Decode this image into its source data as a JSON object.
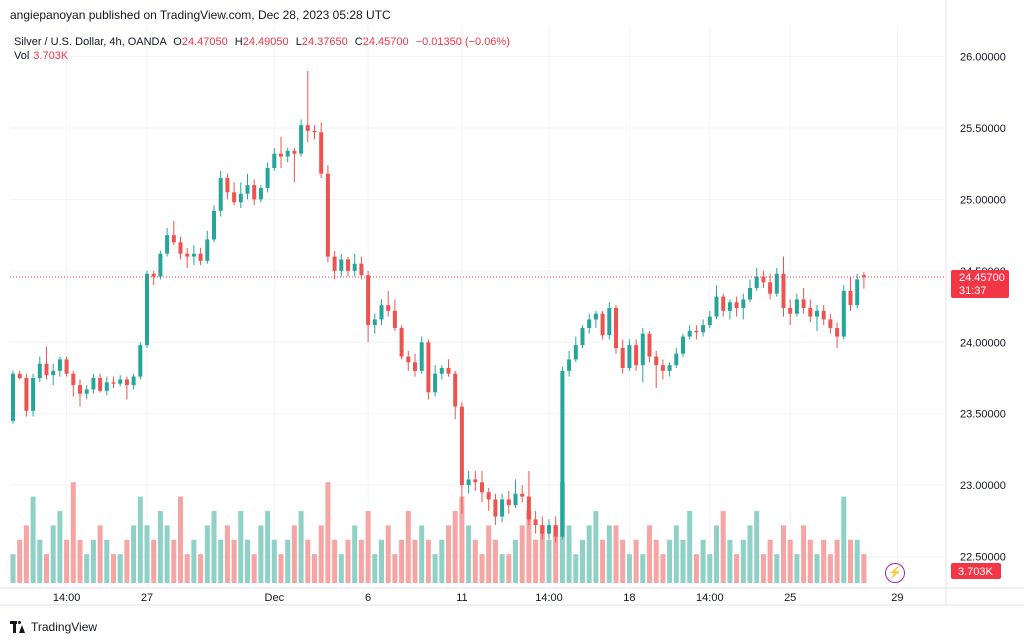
{
  "header": {
    "publisher_text": "angiepanoyan published on TradingView.com, Dec 28, 2023 05:28 UTC"
  },
  "legend": {
    "symbol": "Silver / U.S. Dollar, 4h, OANDA",
    "o_label": "O",
    "o_value": "24.47050",
    "h_label": "H",
    "h_value": "24.49050",
    "l_label": "L",
    "l_value": "24.37650",
    "c_label": "C",
    "c_value": "24.45700",
    "change": "−0.01350 (−0.06%)",
    "vol_label": "Vol",
    "vol_value": "3.703K"
  },
  "price_badge": {
    "price": "24.45700",
    "countdown": "31:37"
  },
  "volume_badge": "3.703K",
  "footer": {
    "brand": "TradingView"
  },
  "colors": {
    "up": "#26a69a",
    "down": "#ef5350",
    "vol_up": "#8fd1c6",
    "vol_down": "#f5a5a3",
    "last_line": "#f23645"
  },
  "chart_data": {
    "type": "candlestick",
    "title": "Silver / U.S. Dollar, 4h, OANDA",
    "ylim": [
      22.35,
      26.2
    ],
    "y_ticks": [
      "26.00000",
      "25.50000",
      "25.00000",
      "24.50000",
      "24.00000",
      "23.50000",
      "23.00000",
      "22.50000"
    ],
    "x_ticks": [
      {
        "label": "14:00",
        "i": 8
      },
      {
        "label": "27",
        "i": 20
      },
      {
        "label": "Dec",
        "i": 39
      },
      {
        "label": "6",
        "i": 53
      },
      {
        "label": "11",
        "i": 67
      },
      {
        "label": "14:00",
        "i": 80
      },
      {
        "label": "18",
        "i": 92
      },
      {
        "label": "14:00",
        "i": 104
      },
      {
        "label": "25",
        "i": 116
      },
      {
        "label": "29",
        "i": 132
      }
    ],
    "last_price": 24.457,
    "candles": [
      {
        "o": 23.45,
        "h": 23.8,
        "l": 23.43,
        "c": 23.78,
        "v": 2
      },
      {
        "o": 23.78,
        "h": 23.8,
        "l": 23.74,
        "c": 23.75,
        "v": 3
      },
      {
        "o": 23.75,
        "h": 23.78,
        "l": 23.48,
        "c": 23.52,
        "v": 4
      },
      {
        "o": 23.52,
        "h": 23.78,
        "l": 23.48,
        "c": 23.75,
        "v": 6
      },
      {
        "o": 23.75,
        "h": 23.9,
        "l": 23.72,
        "c": 23.85,
        "v": 3
      },
      {
        "o": 23.85,
        "h": 23.97,
        "l": 23.74,
        "c": 23.77,
        "v": 2
      },
      {
        "o": 23.77,
        "h": 23.85,
        "l": 23.7,
        "c": 23.8,
        "v": 4
      },
      {
        "o": 23.8,
        "h": 23.9,
        "l": 23.76,
        "c": 23.88,
        "v": 5
      },
      {
        "o": 23.88,
        "h": 23.9,
        "l": 23.76,
        "c": 23.78,
        "v": 3
      },
      {
        "o": 23.78,
        "h": 23.8,
        "l": 23.62,
        "c": 23.7,
        "v": 7
      },
      {
        "o": 23.7,
        "h": 23.74,
        "l": 23.55,
        "c": 23.64,
        "v": 3
      },
      {
        "o": 23.64,
        "h": 23.7,
        "l": 23.6,
        "c": 23.67,
        "v": 2
      },
      {
        "o": 23.67,
        "h": 23.78,
        "l": 23.64,
        "c": 23.75,
        "v": 3
      },
      {
        "o": 23.75,
        "h": 23.78,
        "l": 23.65,
        "c": 23.66,
        "v": 4
      },
      {
        "o": 23.66,
        "h": 23.76,
        "l": 23.63,
        "c": 23.72,
        "v": 3
      },
      {
        "o": 23.72,
        "h": 23.76,
        "l": 23.68,
        "c": 23.71,
        "v": 2
      },
      {
        "o": 23.71,
        "h": 23.77,
        "l": 23.69,
        "c": 23.74,
        "v": 2
      },
      {
        "o": 23.74,
        "h": 23.76,
        "l": 23.6,
        "c": 23.7,
        "v": 3
      },
      {
        "o": 23.7,
        "h": 23.78,
        "l": 23.67,
        "c": 23.76,
        "v": 4
      },
      {
        "o": 23.76,
        "h": 24.0,
        "l": 23.74,
        "c": 23.98,
        "v": 6
      },
      {
        "o": 23.98,
        "h": 24.5,
        "l": 23.96,
        "c": 24.48,
        "v": 4
      },
      {
        "o": 24.48,
        "h": 24.5,
        "l": 24.4,
        "c": 24.46,
        "v": 3
      },
      {
        "o": 24.46,
        "h": 24.64,
        "l": 24.44,
        "c": 24.62,
        "v": 5
      },
      {
        "o": 24.62,
        "h": 24.8,
        "l": 24.6,
        "c": 24.75,
        "v": 4
      },
      {
        "o": 24.75,
        "h": 24.85,
        "l": 24.68,
        "c": 24.7,
        "v": 3
      },
      {
        "o": 24.7,
        "h": 24.74,
        "l": 24.58,
        "c": 24.62,
        "v": 6
      },
      {
        "o": 24.62,
        "h": 24.66,
        "l": 24.52,
        "c": 24.6,
        "v": 2
      },
      {
        "o": 24.6,
        "h": 24.68,
        "l": 24.54,
        "c": 24.62,
        "v": 3
      },
      {
        "o": 24.62,
        "h": 24.66,
        "l": 24.54,
        "c": 24.57,
        "v": 2
      },
      {
        "o": 24.57,
        "h": 24.78,
        "l": 24.55,
        "c": 24.72,
        "v": 4
      },
      {
        "o": 24.72,
        "h": 24.96,
        "l": 24.7,
        "c": 24.92,
        "v": 5
      },
      {
        "o": 24.92,
        "h": 25.2,
        "l": 24.88,
        "c": 25.15,
        "v": 3
      },
      {
        "o": 25.15,
        "h": 25.18,
        "l": 25.0,
        "c": 25.05,
        "v": 4
      },
      {
        "o": 25.05,
        "h": 25.12,
        "l": 24.96,
        "c": 24.98,
        "v": 3
      },
      {
        "o": 24.98,
        "h": 25.12,
        "l": 24.94,
        "c": 25.04,
        "v": 5
      },
      {
        "o": 25.04,
        "h": 25.18,
        "l": 25.0,
        "c": 25.1,
        "v": 3
      },
      {
        "o": 25.1,
        "h": 25.14,
        "l": 24.96,
        "c": 25.0,
        "v": 2
      },
      {
        "o": 25.0,
        "h": 25.1,
        "l": 24.98,
        "c": 25.08,
        "v": 4
      },
      {
        "o": 25.08,
        "h": 25.26,
        "l": 25.05,
        "c": 25.22,
        "v": 5
      },
      {
        "o": 25.22,
        "h": 25.36,
        "l": 25.2,
        "c": 25.32,
        "v": 3
      },
      {
        "o": 25.32,
        "h": 25.44,
        "l": 25.22,
        "c": 25.3,
        "v": 2
      },
      {
        "o": 25.3,
        "h": 25.36,
        "l": 25.26,
        "c": 25.34,
        "v": 3
      },
      {
        "o": 25.34,
        "h": 25.36,
        "l": 25.12,
        "c": 25.32,
        "v": 4
      },
      {
        "o": 25.32,
        "h": 25.56,
        "l": 25.3,
        "c": 25.52,
        "v": 5
      },
      {
        "o": 25.52,
        "h": 25.9,
        "l": 25.4,
        "c": 25.48,
        "v": 3
      },
      {
        "o": 25.48,
        "h": 25.52,
        "l": 25.42,
        "c": 25.47,
        "v": 2
      },
      {
        "o": 25.47,
        "h": 25.54,
        "l": 25.15,
        "c": 25.18,
        "v": 4
      },
      {
        "o": 25.18,
        "h": 25.24,
        "l": 24.56,
        "c": 24.6,
        "v": 7
      },
      {
        "o": 24.6,
        "h": 24.64,
        "l": 24.44,
        "c": 24.5,
        "v": 3
      },
      {
        "o": 24.5,
        "h": 24.62,
        "l": 24.46,
        "c": 24.58,
        "v": 2
      },
      {
        "o": 24.58,
        "h": 24.6,
        "l": 24.46,
        "c": 24.5,
        "v": 3
      },
      {
        "o": 24.5,
        "h": 24.62,
        "l": 24.46,
        "c": 24.55,
        "v": 4
      },
      {
        "o": 24.55,
        "h": 24.6,
        "l": 24.44,
        "c": 24.47,
        "v": 3
      },
      {
        "o": 24.47,
        "h": 24.5,
        "l": 24.0,
        "c": 24.12,
        "v": 5
      },
      {
        "o": 24.12,
        "h": 24.2,
        "l": 24.06,
        "c": 24.16,
        "v": 2
      },
      {
        "o": 24.16,
        "h": 24.3,
        "l": 24.12,
        "c": 24.26,
        "v": 3
      },
      {
        "o": 24.26,
        "h": 24.36,
        "l": 24.18,
        "c": 24.22,
        "v": 4
      },
      {
        "o": 24.22,
        "h": 24.3,
        "l": 24.08,
        "c": 24.1,
        "v": 2
      },
      {
        "o": 24.1,
        "h": 24.12,
        "l": 23.88,
        "c": 23.9,
        "v": 3
      },
      {
        "o": 23.9,
        "h": 23.94,
        "l": 23.8,
        "c": 23.86,
        "v": 5
      },
      {
        "o": 23.86,
        "h": 23.92,
        "l": 23.76,
        "c": 23.8,
        "v": 3
      },
      {
        "o": 23.8,
        "h": 24.04,
        "l": 23.78,
        "c": 24.0,
        "v": 4
      },
      {
        "o": 24.0,
        "h": 24.02,
        "l": 23.6,
        "c": 23.65,
        "v": 3
      },
      {
        "o": 23.65,
        "h": 23.84,
        "l": 23.62,
        "c": 23.78,
        "v": 2
      },
      {
        "o": 23.78,
        "h": 23.84,
        "l": 23.74,
        "c": 23.82,
        "v": 3
      },
      {
        "o": 23.82,
        "h": 23.88,
        "l": 23.76,
        "c": 23.78,
        "v": 4
      },
      {
        "o": 23.78,
        "h": 23.8,
        "l": 23.46,
        "c": 23.55,
        "v": 5
      },
      {
        "o": 23.55,
        "h": 23.58,
        "l": 22.8,
        "c": 23.0,
        "v": 6
      },
      {
        "o": 23.0,
        "h": 23.1,
        "l": 22.94,
        "c": 23.04,
        "v": 4
      },
      {
        "o": 23.04,
        "h": 23.1,
        "l": 22.96,
        "c": 23.02,
        "v": 3
      },
      {
        "o": 23.02,
        "h": 23.1,
        "l": 22.88,
        "c": 22.95,
        "v": 2
      },
      {
        "o": 22.95,
        "h": 22.98,
        "l": 22.82,
        "c": 22.9,
        "v": 4
      },
      {
        "o": 22.9,
        "h": 22.94,
        "l": 22.72,
        "c": 22.78,
        "v": 3
      },
      {
        "o": 22.78,
        "h": 22.94,
        "l": 22.74,
        "c": 22.9,
        "v": 2
      },
      {
        "o": 22.9,
        "h": 22.96,
        "l": 22.8,
        "c": 22.86,
        "v": 2
      },
      {
        "o": 22.86,
        "h": 23.04,
        "l": 22.84,
        "c": 22.94,
        "v": 3
      },
      {
        "o": 22.94,
        "h": 23.0,
        "l": 22.88,
        "c": 22.92,
        "v": 4
      },
      {
        "o": 22.92,
        "h": 23.1,
        "l": 22.72,
        "c": 22.76,
        "v": 5
      },
      {
        "o": 22.76,
        "h": 22.82,
        "l": 22.66,
        "c": 22.72,
        "v": 3
      },
      {
        "o": 22.72,
        "h": 22.78,
        "l": 22.62,
        "c": 22.66,
        "v": 4
      },
      {
        "o": 22.66,
        "h": 22.76,
        "l": 22.62,
        "c": 22.72,
        "v": 3
      },
      {
        "o": 22.72,
        "h": 22.78,
        "l": 22.6,
        "c": 22.64,
        "v": 4
      },
      {
        "o": 22.64,
        "h": 23.83,
        "l": 22.62,
        "c": 23.8,
        "v": 7
      },
      {
        "o": 23.8,
        "h": 23.94,
        "l": 23.76,
        "c": 23.88,
        "v": 4
      },
      {
        "o": 23.88,
        "h": 24.04,
        "l": 23.86,
        "c": 23.98,
        "v": 2
      },
      {
        "o": 23.98,
        "h": 24.12,
        "l": 23.96,
        "c": 24.1,
        "v": 3
      },
      {
        "o": 24.1,
        "h": 24.2,
        "l": 24.06,
        "c": 24.16,
        "v": 4
      },
      {
        "o": 24.16,
        "h": 24.22,
        "l": 24.1,
        "c": 24.2,
        "v": 5
      },
      {
        "o": 24.2,
        "h": 24.22,
        "l": 24.02,
        "c": 24.05,
        "v": 3
      },
      {
        "o": 24.05,
        "h": 24.28,
        "l": 24.02,
        "c": 24.24,
        "v": 4
      },
      {
        "o": 24.24,
        "h": 24.26,
        "l": 23.92,
        "c": 23.96,
        "v": 4
      },
      {
        "o": 23.96,
        "h": 24.02,
        "l": 23.78,
        "c": 23.82,
        "v": 3
      },
      {
        "o": 23.82,
        "h": 24.02,
        "l": 23.8,
        "c": 23.98,
        "v": 2
      },
      {
        "o": 23.98,
        "h": 24.02,
        "l": 23.8,
        "c": 23.84,
        "v": 3
      },
      {
        "o": 23.84,
        "h": 24.1,
        "l": 23.72,
        "c": 24.06,
        "v": 2
      },
      {
        "o": 24.06,
        "h": 24.08,
        "l": 23.86,
        "c": 23.9,
        "v": 4
      },
      {
        "o": 23.9,
        "h": 23.94,
        "l": 23.68,
        "c": 23.84,
        "v": 3
      },
      {
        "o": 23.84,
        "h": 23.88,
        "l": 23.74,
        "c": 23.8,
        "v": 2
      },
      {
        "o": 23.8,
        "h": 23.86,
        "l": 23.76,
        "c": 23.84,
        "v": 3
      },
      {
        "o": 23.84,
        "h": 23.96,
        "l": 23.82,
        "c": 23.92,
        "v": 4
      },
      {
        "o": 23.92,
        "h": 24.06,
        "l": 23.9,
        "c": 24.04,
        "v": 3
      },
      {
        "o": 24.04,
        "h": 24.12,
        "l": 24.02,
        "c": 24.08,
        "v": 5
      },
      {
        "o": 24.08,
        "h": 24.12,
        "l": 24.02,
        "c": 24.07,
        "v": 2
      },
      {
        "o": 24.07,
        "h": 24.16,
        "l": 24.04,
        "c": 24.12,
        "v": 3
      },
      {
        "o": 24.12,
        "h": 24.22,
        "l": 24.1,
        "c": 24.18,
        "v": 2
      },
      {
        "o": 24.18,
        "h": 24.4,
        "l": 24.16,
        "c": 24.32,
        "v": 4
      },
      {
        "o": 24.32,
        "h": 24.34,
        "l": 24.18,
        "c": 24.22,
        "v": 5
      },
      {
        "o": 24.22,
        "h": 24.3,
        "l": 24.16,
        "c": 24.28,
        "v": 3
      },
      {
        "o": 24.28,
        "h": 24.32,
        "l": 24.18,
        "c": 24.24,
        "v": 2
      },
      {
        "o": 24.24,
        "h": 24.34,
        "l": 24.16,
        "c": 24.3,
        "v": 3
      },
      {
        "o": 24.3,
        "h": 24.44,
        "l": 24.28,
        "c": 24.38,
        "v": 4
      },
      {
        "o": 24.38,
        "h": 24.52,
        "l": 24.36,
        "c": 24.46,
        "v": 5
      },
      {
        "o": 24.46,
        "h": 24.5,
        "l": 24.38,
        "c": 24.42,
        "v": 2
      },
      {
        "o": 24.42,
        "h": 24.48,
        "l": 24.3,
        "c": 24.34,
        "v": 3
      },
      {
        "o": 24.34,
        "h": 24.52,
        "l": 24.32,
        "c": 24.48,
        "v": 2
      },
      {
        "o": 24.48,
        "h": 24.6,
        "l": 24.18,
        "c": 24.24,
        "v": 4
      },
      {
        "o": 24.24,
        "h": 24.3,
        "l": 24.12,
        "c": 24.2,
        "v": 3
      },
      {
        "o": 24.2,
        "h": 24.34,
        "l": 24.18,
        "c": 24.3,
        "v": 2
      },
      {
        "o": 24.3,
        "h": 24.38,
        "l": 24.2,
        "c": 24.24,
        "v": 4
      },
      {
        "o": 24.24,
        "h": 24.3,
        "l": 24.14,
        "c": 24.18,
        "v": 3
      },
      {
        "o": 24.18,
        "h": 24.26,
        "l": 24.08,
        "c": 24.22,
        "v": 2
      },
      {
        "o": 24.22,
        "h": 24.26,
        "l": 24.12,
        "c": 24.16,
        "v": 3
      },
      {
        "o": 24.16,
        "h": 24.2,
        "l": 24.06,
        "c": 24.1,
        "v": 2
      },
      {
        "o": 24.1,
        "h": 24.14,
        "l": 23.96,
        "c": 24.04,
        "v": 3
      },
      {
        "o": 24.04,
        "h": 24.4,
        "l": 24.02,
        "c": 24.36,
        "v": 6
      },
      {
        "o": 24.36,
        "h": 24.46,
        "l": 24.22,
        "c": 24.26,
        "v": 3
      },
      {
        "o": 24.26,
        "h": 24.48,
        "l": 24.24,
        "c": 24.44,
        "v": 3
      },
      {
        "o": 24.4705,
        "h": 24.4905,
        "l": 24.3765,
        "c": 24.457,
        "v": 2
      }
    ]
  }
}
